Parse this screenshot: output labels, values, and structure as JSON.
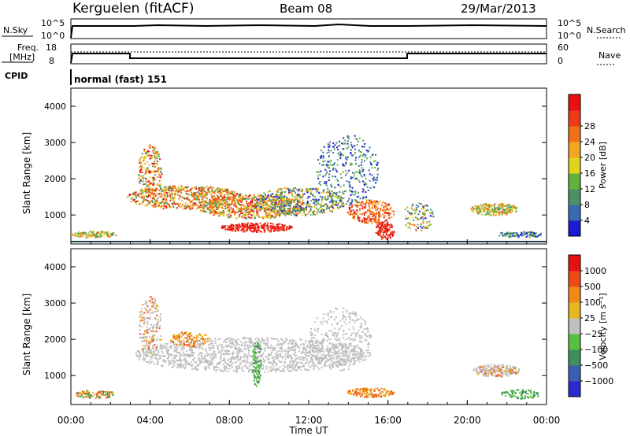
{
  "header": {
    "station": "Kerguelen (fitACF)",
    "beam": "Beam 08",
    "date": "29/Mar/2013"
  },
  "panels": {
    "nsky": {
      "left_label": "N.Sky",
      "left_ticks": [
        "10^5",
        "10^0"
      ],
      "right_ticks": [
        "10^5",
        "10^0"
      ],
      "right_label": "N.Search"
    },
    "freq": {
      "left_label_1": "Freq.",
      "left_label_2": "[MHz]",
      "left_ticks": [
        "18",
        "8"
      ],
      "right_ticks": [
        "60",
        "0"
      ],
      "right_label": "Nave"
    },
    "cpid": {
      "label": "CPID",
      "value": "normal (fast) 151"
    }
  },
  "chart_data": [
    {
      "type": "heatmap",
      "parameter": "Power",
      "ylabel": "Slant Range [km]",
      "xlabel": "Time UT",
      "x_ticks": [
        "00:00",
        "04:00",
        "08:00",
        "12:00",
        "16:00",
        "20:00",
        "00:00"
      ],
      "y_ticks": [
        1000,
        2000,
        3000,
        4000
      ],
      "ylim": [
        200,
        4500
      ],
      "colorbar": {
        "label": "Power [dB]",
        "ticks": [
          "4",
          "8",
          "12",
          "16",
          "20",
          "24",
          "28"
        ],
        "colors": [
          "#1b1bd6",
          "#3a6ab0",
          "#4f8f66",
          "#62b23c",
          "#e0d41a",
          "#f3a524",
          "#f07018",
          "#ee3a18",
          "#e81010"
        ]
      }
    },
    {
      "type": "heatmap",
      "parameter": "Velocity",
      "ylabel": "Slant Range [km]",
      "xlabel": "Time UT",
      "x_ticks": [
        "00:00",
        "04:00",
        "08:00",
        "12:00",
        "16:00",
        "20:00",
        "00:00"
      ],
      "y_ticks": [
        1000,
        2000,
        3000,
        4000
      ],
      "ylim": [
        200,
        4500
      ],
      "colorbar": {
        "label": "Velocity [m s⁻¹]",
        "ticks": [
          "1000",
          "500",
          "100",
          "25",
          "−25",
          "−100",
          "−500",
          "−1000"
        ],
        "colors": [
          "#2a2ad0",
          "#3a5fb0",
          "#3f8f5a",
          "#58c040",
          "#c0c0c0",
          "#e6b820",
          "#f08a18",
          "#ee4a18",
          "#e61212"
        ]
      }
    }
  ],
  "colors": {
    "axis": "#000000",
    "cpid_line": "#000000"
  }
}
